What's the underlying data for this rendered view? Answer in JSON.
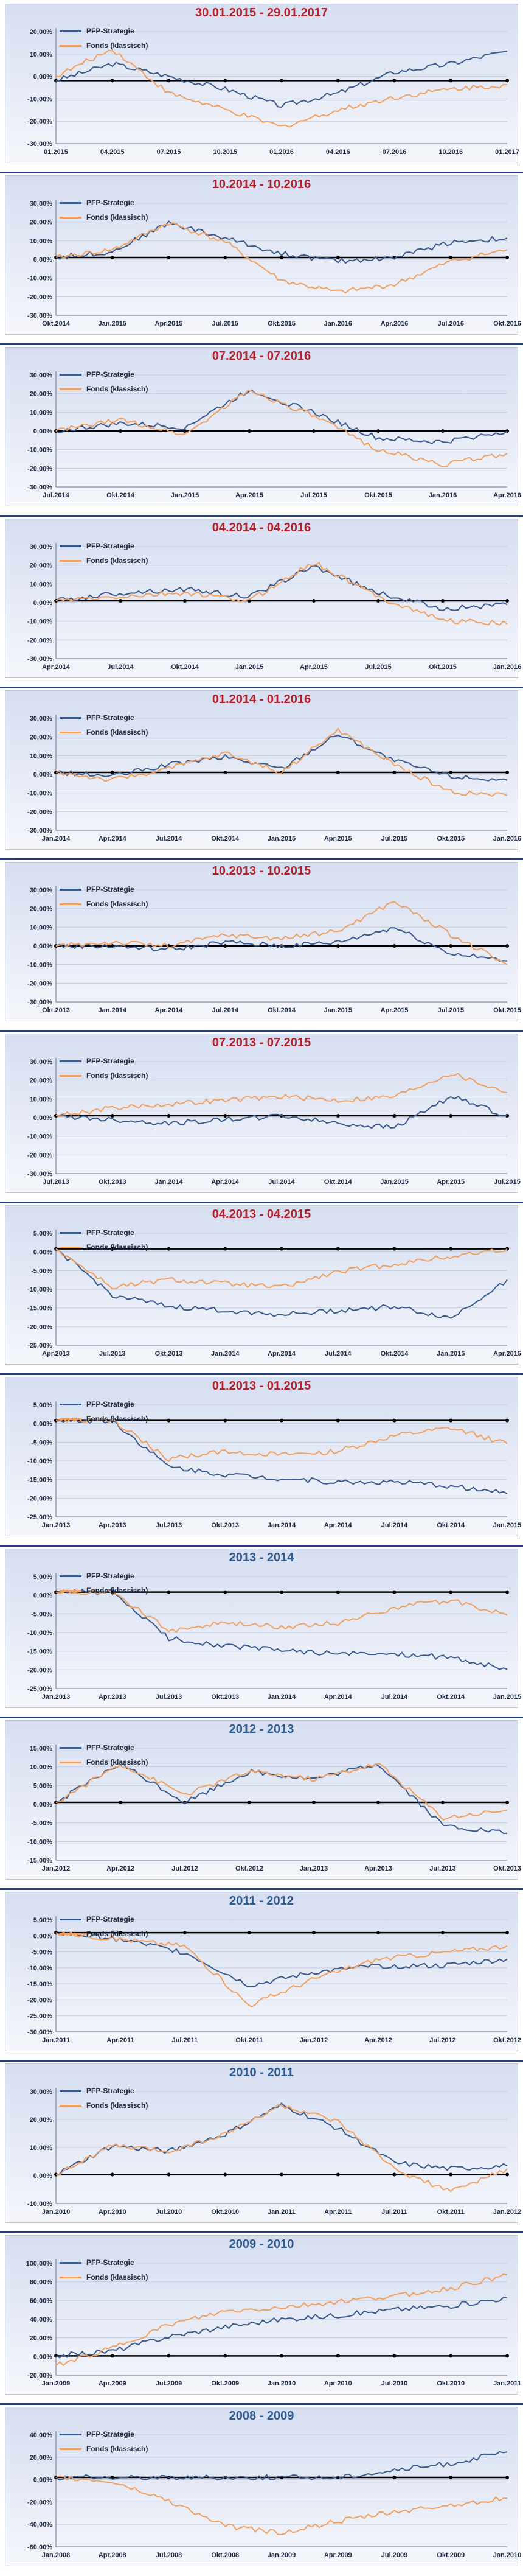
{
  "legend": [
    "PFP-Strategie",
    "Fonds (klassisch)"
  ],
  "colors": {
    "strategy": "#3a5a8c",
    "fund": "#f0a060",
    "zero_line": "#000000",
    "red_title": "#b3202a",
    "blue_title": "#2f5b8f"
  },
  "chart_data": [
    {
      "type": "line",
      "title": "30.01.2015 - 29.01.2017",
      "title_color": "red",
      "x": [
        "01.2015",
        "04.2015",
        "07.2015",
        "10.2015",
        "01.2016",
        "04.2016",
        "07.2016",
        "10.2016",
        "01.2017"
      ],
      "yticks": [
        "20,00%",
        "10,00%",
        "0,00%",
        "-10,00%",
        "-20,00%",
        "-30,00%"
      ],
      "ylim": [
        -30,
        25
      ],
      "series": [
        {
          "name": "PFP-Strategie",
          "values": [
            0,
            8,
            2,
            -4,
            -12,
            -6,
            4,
            8,
            14
          ]
        },
        {
          "name": "Fonds (klassisch)",
          "values": [
            2,
            15,
            -6,
            -14,
            -22,
            -14,
            -8,
            -4,
            -2
          ]
        }
      ]
    },
    {
      "type": "line",
      "title": "10.2014 - 10.2016",
      "title_color": "red",
      "x": [
        "Okt.2014",
        "Jan.2015",
        "Apr.2015",
        "Jul.2015",
        "Okt.2015",
        "Jan.2016",
        "Apr.2016",
        "Jul.2016",
        "Okt.2016"
      ],
      "yticks": [
        "30,00%",
        "20,00%",
        "10,00%",
        "0,00%",
        "-10,00%",
        "-20,00%",
        "-30,00%"
      ],
      "ylim": [
        -30,
        30
      ],
      "series": [
        {
          "name": "PFP-Strategie",
          "values": [
            0,
            3,
            18,
            10,
            2,
            -2,
            0,
            8,
            10
          ]
        },
        {
          "name": "Fonds (klassisch)",
          "values": [
            0,
            4,
            18,
            8,
            -12,
            -18,
            -14,
            -2,
            4
          ]
        }
      ]
    },
    {
      "type": "line",
      "title": "07.2014 - 07.2016",
      "title_color": "red",
      "x": [
        "Jul.2014",
        "Okt.2014",
        "Jan.2015",
        "Apr.2015",
        "Jul.2015",
        "Okt.2015",
        "Jan.2016",
        "Apr.2016"
      ],
      "yticks": [
        "30,00%",
        "20,00%",
        "10,00%",
        "0,00%",
        "-10,00%",
        "-20,00%",
        "-30,00%"
      ],
      "ylim": [
        -30,
        32
      ],
      "series": [
        {
          "name": "PFP-Strategie",
          "values": [
            0,
            4,
            2,
            22,
            10,
            -4,
            -6,
            0
          ]
        },
        {
          "name": "Fonds (klassisch)",
          "values": [
            0,
            6,
            -2,
            22,
            8,
            -10,
            -18,
            -12
          ]
        }
      ]
    },
    {
      "type": "line",
      "title": "04.2014 - 04.2016",
      "title_color": "red",
      "x": [
        "Apr.2014",
        "Jul.2014",
        "Okt.2014",
        "Jan.2015",
        "Apr.2015",
        "Jul.2015",
        "Okt.2015",
        "Jan.2016"
      ],
      "yticks": [
        "30,00%",
        "20,00%",
        "10,00%",
        "0,00%",
        "-10,00%",
        "-20,00%",
        "-30,00%"
      ],
      "ylim": [
        -30,
        30
      ],
      "series": [
        {
          "name": "PFP-Strategie",
          "values": [
            0,
            4,
            6,
            2,
            18,
            4,
            -4,
            -2
          ]
        },
        {
          "name": "Fonds (klassisch)",
          "values": [
            0,
            2,
            4,
            0,
            20,
            2,
            -10,
            -12
          ]
        }
      ]
    },
    {
      "type": "line",
      "title": "01.2014 - 01.2016",
      "title_color": "red",
      "x": [
        "Jan.2014",
        "Apr.2014",
        "Jul.2014",
        "Okt.2014",
        "Jan.2015",
        "Apr.2015",
        "Jul.2015",
        "Okt.2015",
        "Jan.2016"
      ],
      "yticks": [
        "30,00%",
        "20,00%",
        "10,00%",
        "0,00%",
        "-10,00%",
        "-20,00%",
        "-30,00%"
      ],
      "ylim": [
        -30,
        30
      ],
      "series": [
        {
          "name": "PFP-Strategie",
          "values": [
            0,
            -2,
            4,
            8,
            2,
            20,
            6,
            -2,
            -4
          ]
        },
        {
          "name": "Fonds (klassisch)",
          "values": [
            0,
            -4,
            2,
            10,
            0,
            22,
            4,
            -10,
            -12
          ]
        }
      ]
    },
    {
      "type": "line",
      "title": "10.2013 - 10.2015",
      "title_color": "red",
      "x": [
        "Okt.2013",
        "Jan.2014",
        "Apr.2014",
        "Jul.2014",
        "Okt.2014",
        "Jan.2015",
        "Apr.2015",
        "Jul.2015",
        "Okt.2015"
      ],
      "yticks": [
        "30,00%",
        "20,00%",
        "10,00%",
        "0,00%",
        "-10,00%",
        "-20,00%",
        "-30,00%"
      ],
      "ylim": [
        -30,
        32
      ],
      "series": [
        {
          "name": "PFP-Strategie",
          "values": [
            0,
            0,
            -2,
            2,
            0,
            2,
            10,
            -4,
            -8
          ]
        },
        {
          "name": "Fonds (klassisch)",
          "values": [
            0,
            2,
            0,
            6,
            4,
            8,
            24,
            6,
            -10
          ]
        }
      ]
    },
    {
      "type": "line",
      "title": "07.2013 - 07.2015",
      "title_color": "red",
      "x": [
        "Jul.2013",
        "Okt.2013",
        "Jan.2014",
        "Apr.2014",
        "Jul.2014",
        "Okt.2014",
        "Jan.2015",
        "Apr.2015",
        "Jul.2015"
      ],
      "yticks": [
        "30,00%",
        "20,00%",
        "10,00%",
        "0,00%",
        "-10,00%",
        "-20,00%",
        "-30,00%"
      ],
      "ylim": [
        -30,
        30
      ],
      "series": [
        {
          "name": "PFP-Strategie",
          "values": [
            0,
            -2,
            -4,
            -2,
            0,
            -4,
            -6,
            10,
            0
          ]
        },
        {
          "name": "Fonds (klassisch)",
          "values": [
            0,
            4,
            6,
            8,
            10,
            8,
            10,
            22,
            12
          ]
        }
      ]
    },
    {
      "type": "line",
      "title": "04.2013 - 04.2015",
      "title_color": "red",
      "x": [
        "Apr.2013",
        "Jul.2013",
        "Okt.2013",
        "Jan.2014",
        "Apr.2014",
        "Jul.2014",
        "Okt.2014",
        "Jan.2015",
        "Apr.2015"
      ],
      "yticks": [
        "5,00%",
        "0,00%",
        "-5,00%",
        "-10,00%",
        "-15,00%",
        "-20,00%",
        "-25,00%"
      ],
      "ylim": [
        -25,
        5
      ],
      "series": [
        {
          "name": "PFP-Strategie",
          "values": [
            0,
            -12,
            -15,
            -16,
            -17,
            -16,
            -15,
            -18,
            -8
          ]
        },
        {
          "name": "Fonds (klassisch)",
          "values": [
            0,
            -10,
            -8,
            -9,
            -10,
            -6,
            -4,
            -2,
            0
          ]
        }
      ]
    },
    {
      "type": "line",
      "title": "01.2013 - 01.2015",
      "title_color": "red",
      "x": [
        "Jan.2013",
        "Apr.2013",
        "Jul.2013",
        "Okt.2013",
        "Jan.2014",
        "Apr.2014",
        "Jul.2014",
        "Okt.2014",
        "Jan.2015"
      ],
      "yticks": [
        "5,00%",
        "0,00%",
        "-5,00%",
        "-10,00%",
        "-15,00%",
        "-20,00%",
        "-25,00%"
      ],
      "ylim": [
        -25,
        5
      ],
      "series": [
        {
          "name": "PFP-Strategie",
          "values": [
            0,
            0,
            -12,
            -14,
            -15,
            -16,
            -16,
            -17,
            -19
          ]
        },
        {
          "name": "Fonds (klassisch)",
          "values": [
            0,
            0,
            -10,
            -8,
            -9,
            -8,
            -4,
            -2,
            -6
          ]
        }
      ]
    },
    {
      "type": "line",
      "title": "2013 - 2014",
      "title_color": "blue",
      "x": [
        "Jan.2013",
        "Apr.2013",
        "Jul.2013",
        "Okt.2013",
        "Jan.2014",
        "Apr.2014",
        "Jul.2014",
        "Okt.2014",
        "Jan.2015"
      ],
      "yticks": [
        "5,00%",
        "0,00%",
        "-5,00%",
        "-10,00%",
        "-15,00%",
        "-20,00%",
        "-25,00%"
      ],
      "ylim": [
        -25,
        5
      ],
      "series": [
        {
          "name": "PFP-Strategie",
          "values": [
            0,
            0,
            -12,
            -14,
            -15,
            -16,
            -16,
            -17,
            -20
          ]
        },
        {
          "name": "Fonds (klassisch)",
          "values": [
            0,
            0,
            -10,
            -8,
            -9,
            -8,
            -4,
            -2,
            -6
          ]
        }
      ]
    },
    {
      "type": "line",
      "title": "2012 - 2013",
      "title_color": "blue",
      "x": [
        "Jan.2012",
        "Apr.2012",
        "Jul.2012",
        "Okt.2012",
        "Jan.2013",
        "Apr.2013",
        "Jul.2013",
        "Okt.2013"
      ],
      "yticks": [
        "15,00%",
        "10,00%",
        "5,00%",
        "0,00%",
        "-5,00%",
        "-10,00%",
        "-15,00%"
      ],
      "ylim": [
        -15,
        15
      ],
      "series": [
        {
          "name": "PFP-Strategie",
          "values": [
            0,
            10,
            0,
            8,
            6,
            10,
            -6,
            -8
          ]
        },
        {
          "name": "Fonds (klassisch)",
          "values": [
            0,
            10,
            2,
            8,
            6,
            10,
            -4,
            -2
          ]
        }
      ]
    },
    {
      "type": "line",
      "title": "2011 - 2012",
      "title_color": "blue",
      "x": [
        "Jan.2011",
        "Apr.2011",
        "Jul.2011",
        "Okt.2011",
        "Jan.2012",
        "Apr.2012",
        "Jul.2012",
        "Okt.2012"
      ],
      "yticks": [
        "5,00%",
        "0,00%",
        "-5,00%",
        "-10,00%",
        "-15,00%",
        "-20,00%",
        "-25,00%",
        "-30,00%"
      ],
      "ylim": [
        -30,
        5
      ],
      "series": [
        {
          "name": "PFP-Strategie",
          "values": [
            0,
            -2,
            -6,
            -16,
            -12,
            -10,
            -10,
            -8
          ]
        },
        {
          "name": "Fonds (klassisch)",
          "values": [
            0,
            -2,
            -4,
            -22,
            -14,
            -8,
            -6,
            -4
          ]
        }
      ]
    },
    {
      "type": "line",
      "title": "2010 - 2011",
      "title_color": "blue",
      "x": [
        "Jan.2010",
        "Apr.2010",
        "Jul.2010",
        "Okt.2010",
        "Jan.2011",
        "Apr.2011",
        "Jul.2011",
        "Okt.2011",
        "Jan.2012"
      ],
      "yticks": [
        "30,00%",
        "20,00%",
        "10,00%",
        "0,00%",
        "-10,00%"
      ],
      "ylim": [
        -10,
        30
      ],
      "series": [
        {
          "name": "PFP-Strategie",
          "values": [
            0,
            10,
            8,
            14,
            24,
            16,
            4,
            2,
            3
          ]
        },
        {
          "name": "Fonds (klassisch)",
          "values": [
            0,
            10,
            8,
            14,
            24,
            18,
            2,
            -6,
            2
          ]
        }
      ]
    },
    {
      "type": "line",
      "title": "2009 - 2010",
      "title_color": "blue",
      "x": [
        "Jan.2009",
        "Apr.2009",
        "Jul.2009",
        "Okt.2009",
        "Jan.2010",
        "Apr.2010",
        "Jul.2010",
        "Okt.2010",
        "Jan.2011"
      ],
      "yticks": [
        "100,00%",
        "80,00%",
        "60,00%",
        "40,00%",
        "20,00%",
        "0,00%",
        "-20,00%"
      ],
      "ylim": [
        -20,
        100
      ],
      "series": [
        {
          "name": "PFP-Strategie",
          "values": [
            0,
            5,
            20,
            30,
            38,
            42,
            48,
            52,
            60
          ]
        },
        {
          "name": "Fonds (klassisch)",
          "values": [
            -10,
            8,
            32,
            46,
            50,
            56,
            62,
            70,
            84
          ]
        }
      ]
    },
    {
      "type": "line",
      "title": "2008 - 2009",
      "title_color": "blue",
      "x": [
        "Jan.2008",
        "Apr.2008",
        "Jul.2008",
        "Okt.2008",
        "Jan.2009",
        "Apr.2009",
        "Jul.2009",
        "Okt.2009",
        "Jan.2010"
      ],
      "yticks": [
        "40,00%",
        "20,00%",
        "0,00%",
        "-20,00%",
        "-40,00%",
        "-60,00%"
      ],
      "ylim": [
        -60,
        40
      ],
      "series": [
        {
          "name": "PFP-Strategie",
          "values": [
            0,
            0,
            0,
            0,
            0,
            0,
            6,
            12,
            22
          ]
        },
        {
          "name": "Fonds (klassisch)",
          "values": [
            0,
            -4,
            -20,
            -42,
            -48,
            -38,
            -30,
            -24,
            -18
          ]
        }
      ]
    }
  ]
}
